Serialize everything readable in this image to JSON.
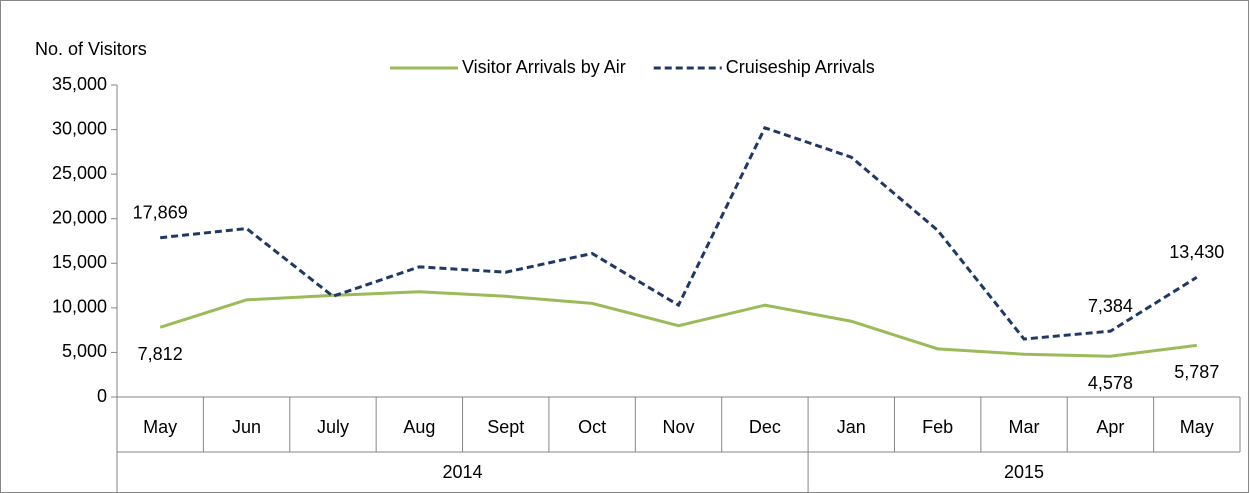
{
  "chart_data": {
    "type": "line",
    "y_label": "No. of  Visitors",
    "groups": [
      {
        "name": "2014",
        "categories": [
          "May",
          "Jun",
          "July",
          "Aug",
          "Sept",
          "Oct",
          "Nov",
          "Dec"
        ]
      },
      {
        "name": "2015",
        "categories": [
          "Jan",
          "Feb",
          "Mar",
          "Apr",
          "May"
        ]
      }
    ],
    "series": [
      {
        "name": "Visitor Arrivals by Air",
        "color": "#9bbb59",
        "dash": false,
        "values": [
          7812,
          10900,
          11400,
          11800,
          11300,
          10500,
          8000,
          10300,
          8500,
          5400,
          4800,
          4578,
          5787
        ],
        "value_labels": [
          "7,812",
          null,
          null,
          null,
          null,
          null,
          null,
          null,
          null,
          null,
          null,
          "4,578",
          "5,787"
        ]
      },
      {
        "name": "Cruiseship Arrivals",
        "color": "#1f3864",
        "dash": true,
        "values": [
          17869,
          18900,
          11300,
          14600,
          14000,
          16100,
          10300,
          30200,
          26900,
          18700,
          6500,
          7384,
          13430
        ],
        "value_labels": [
          "17,869",
          null,
          null,
          null,
          null,
          null,
          null,
          null,
          null,
          null,
          null,
          "7,384",
          "13,430"
        ]
      }
    ],
    "ylim": [
      0,
      35000
    ],
    "yticks": [
      0,
      {
        "value": 5000,
        "label": "5,000"
      },
      {
        "value": 10000,
        "label": "10,000"
      },
      {
        "value": 15000,
        "label": "15,000"
      },
      {
        "value": 20000,
        "label": "20,000"
      },
      {
        "value": 25000,
        "label": "25,000"
      },
      {
        "value": 30000,
        "label": "30,000"
      },
      {
        "value": 35000,
        "label": "35,000"
      }
    ]
  }
}
